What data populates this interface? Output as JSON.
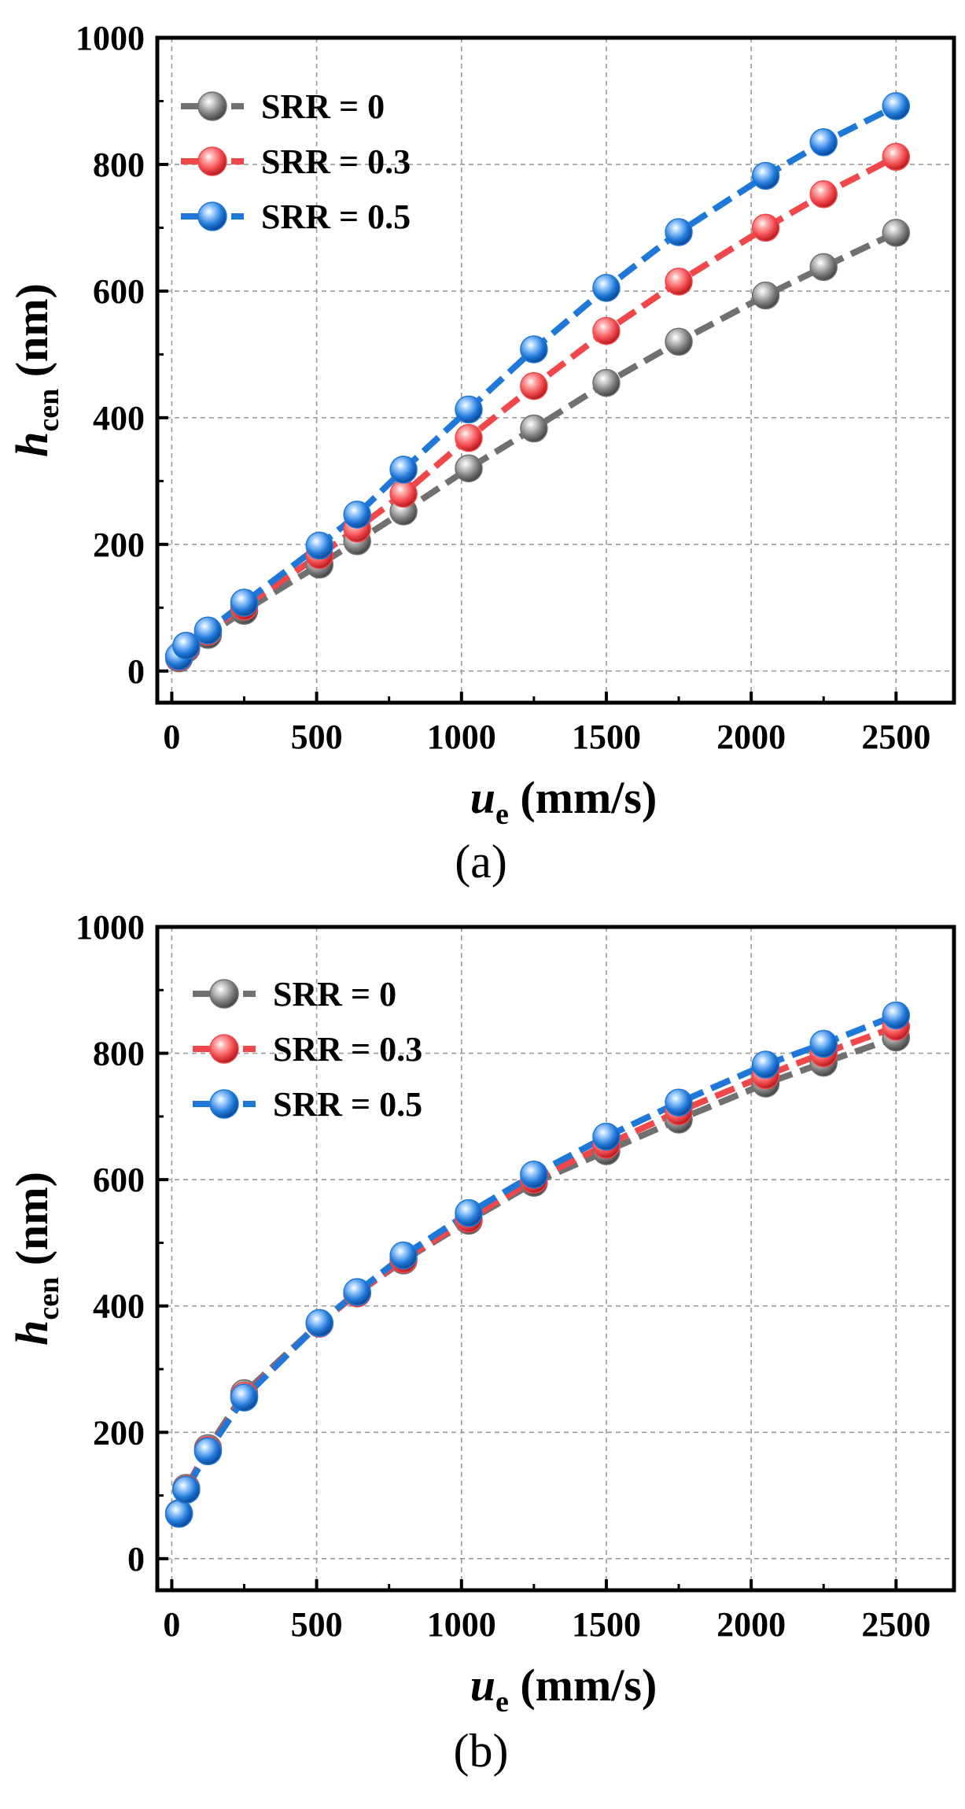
{
  "chart_data": [
    {
      "type": "line",
      "panel_label": "(a)",
      "xlabel": {
        "var": "u",
        "sub": "e",
        "unit": " (mm/s)"
      },
      "ylabel": {
        "var": "h",
        "sub": "cen",
        "unit": " (nm)"
      },
      "xlim": [
        -50,
        2700
      ],
      "ylim": [
        -50,
        1000
      ],
      "xticks": [
        0,
        500,
        1000,
        1500,
        2000,
        2500
      ],
      "yticks": [
        0,
        200,
        400,
        600,
        800,
        1000
      ],
      "grid": true,
      "legend_position": "top-left",
      "x": [
        25,
        50,
        125,
        250,
        510,
        640,
        800,
        1025,
        1250,
        1500,
        1750,
        2050,
        2250,
        2500
      ],
      "series": [
        {
          "name": "SRR = 0",
          "color": "#707070",
          "values": [
            20,
            35,
            57,
            95,
            168,
            205,
            252,
            320,
            383,
            455,
            520,
            593,
            638,
            692
          ]
        },
        {
          "name": "SRR = 0.3",
          "color": "#f0474b",
          "values": [
            22,
            38,
            62,
            102,
            183,
            225,
            280,
            368,
            450,
            537,
            615,
            700,
            753,
            812
          ]
        },
        {
          "name": "SRR = 0.5",
          "color": "#1f78d8",
          "values": [
            23,
            40,
            64,
            108,
            198,
            247,
            318,
            413,
            508,
            605,
            693,
            782,
            835,
            892
          ]
        }
      ]
    },
    {
      "type": "line",
      "panel_label": "(b)",
      "xlabel": {
        "var": "u",
        "sub": "e",
        "unit": " (mm/s)"
      },
      "ylabel": {
        "var": "h",
        "sub": "cen",
        "unit": " (nm)"
      },
      "xlim": [
        -50,
        2700
      ],
      "ylim": [
        -50,
        1000
      ],
      "xticks": [
        0,
        500,
        1000,
        1500,
        2000,
        2500
      ],
      "yticks": [
        0,
        200,
        400,
        600,
        800,
        1000
      ],
      "grid": true,
      "legend_position": "top-left",
      "x": [
        25,
        50,
        125,
        250,
        510,
        640,
        800,
        1025,
        1250,
        1500,
        1750,
        2050,
        2250,
        2500
      ],
      "series": [
        {
          "name": "SRR = 0",
          "color": "#707070",
          "values": [
            72,
            112,
            175,
            262,
            373,
            420,
            472,
            535,
            595,
            645,
            695,
            752,
            785,
            825
          ]
        },
        {
          "name": "SRR = 0.3",
          "color": "#f0474b",
          "values": [
            71,
            110,
            172,
            258,
            372,
            420,
            474,
            538,
            600,
            655,
            708,
            765,
            800,
            842
          ]
        },
        {
          "name": "SRR = 0.5",
          "color": "#1f78d8",
          "values": [
            71,
            109,
            170,
            255,
            373,
            422,
            480,
            547,
            608,
            668,
            722,
            782,
            815,
            860
          ]
        }
      ]
    }
  ]
}
